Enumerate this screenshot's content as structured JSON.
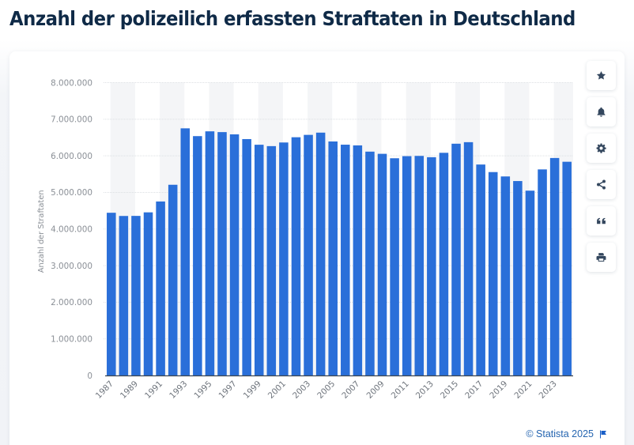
{
  "page": {
    "title": "Anzahl der polizeilich erfassten Straftaten in Deutschland"
  },
  "toolbar": {
    "buttons": [
      {
        "name": "favorite",
        "icon": "star-icon"
      },
      {
        "name": "notification",
        "icon": "bell-icon"
      },
      {
        "name": "settings",
        "icon": "gear-icon"
      },
      {
        "name": "share",
        "icon": "share-icon"
      },
      {
        "name": "cite",
        "icon": "quote-icon"
      },
      {
        "name": "print",
        "icon": "print-icon"
      }
    ]
  },
  "footer": {
    "copyright": "© Statista 2025",
    "icon": "flag-icon"
  },
  "colors": {
    "bar": "#2a6fd9",
    "title": "#0f2a47",
    "footer_link": "#2565b0"
  },
  "chart_data": {
    "type": "bar",
    "title": "Anzahl der polizeilich erfassten Straftaten in Deutschland",
    "xlabel": "",
    "ylabel": "Anzahl der Straftaten",
    "ylim": [
      0,
      8000000
    ],
    "yticks": [
      0,
      1000000,
      2000000,
      3000000,
      4000000,
      5000000,
      6000000,
      7000000,
      8000000
    ],
    "ytick_labels": [
      "0",
      "1.000.000",
      "2.000.000",
      "3.000.000",
      "4.000.000",
      "5.000.000",
      "6.000.000",
      "7.000.000",
      "8.000.000"
    ],
    "xtick_labels": [
      "1987",
      "1989",
      "1991",
      "1993",
      "1995",
      "1997",
      "1999",
      "2001",
      "2003",
      "2005",
      "2007",
      "2009",
      "2011",
      "2013",
      "2015",
      "2017",
      "2019",
      "2021",
      "2023"
    ],
    "grid": true,
    "legend": "none",
    "categories": [
      "1987",
      "1988",
      "1989",
      "1990",
      "1991",
      "1992",
      "1993",
      "1994",
      "1995",
      "1996",
      "1997",
      "1998",
      "1999",
      "2000",
      "2001",
      "2002",
      "2003",
      "2004",
      "2005",
      "2006",
      "2007",
      "2008",
      "2009",
      "2010",
      "2011",
      "2012",
      "2013",
      "2014",
      "2015",
      "2016",
      "2017",
      "2018",
      "2019",
      "2020",
      "2021",
      "2022",
      "2023",
      "2024"
    ],
    "values": [
      4444108,
      4356726,
      4358573,
      4455333,
      4752175,
      5209060,
      6750613,
      6537748,
      6668717,
      6647598,
      6586165,
      6456996,
      6302316,
      6264723,
      6363865,
      6507394,
      6572135,
      6633156,
      6391715,
      6304223,
      6284661,
      6114128,
      6054330,
      5933278,
      5990679,
      5997040,
      5961662,
      6082064,
      6330649,
      6372526,
      5761984,
      5555520,
      5436401,
      5310621,
      5047860,
      5628584,
      5940667,
      5837445
    ]
  }
}
